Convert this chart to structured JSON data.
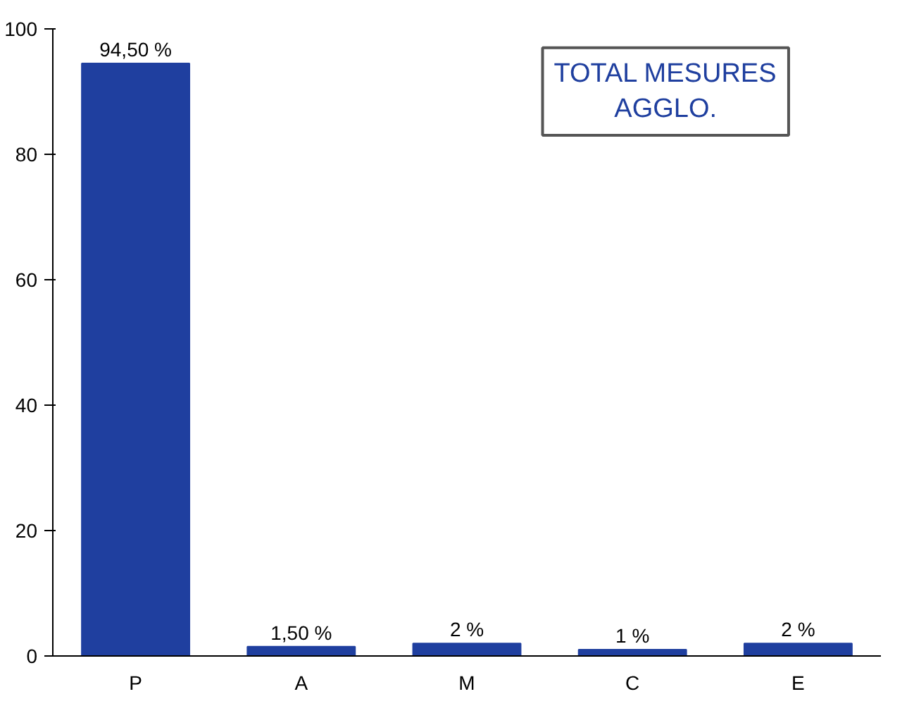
{
  "chart_data": {
    "type": "bar",
    "title": "TOTAL MESURES AGGLO.",
    "categories": [
      "P",
      "A",
      "M",
      "C",
      "E"
    ],
    "values": [
      94.5,
      1.5,
      2,
      1,
      2
    ],
    "value_labels": [
      "94,50 %",
      "1,50 %",
      "2 %",
      "1 %",
      "2 %"
    ],
    "color": "#1f3f9f",
    "ylim": [
      0,
      100
    ],
    "yticks": [
      0,
      20,
      40,
      60,
      80,
      100
    ],
    "grid": false
  }
}
